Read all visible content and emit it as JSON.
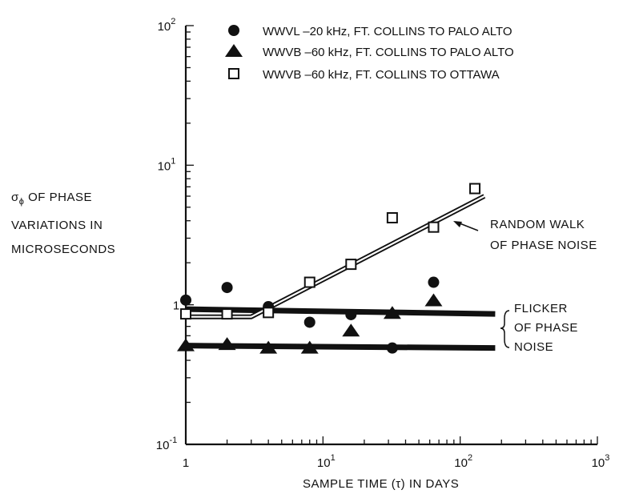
{
  "chart_data": {
    "type": "scatter",
    "title": "",
    "xlabel": "SAMPLE TIME (τ) IN DAYS",
    "ylabel_lines": [
      "σ",
      "ϕ",
      " OF PHASE",
      "VARIATIONS IN",
      "MICROSECONDS"
    ],
    "x_scale": "log",
    "y_scale": "log",
    "xlim": [
      1,
      1000
    ],
    "ylim": [
      0.1,
      100
    ],
    "x_ticks": [
      {
        "base": "1",
        "exp": ""
      },
      {
        "base": "10",
        "exp": "1"
      },
      {
        "base": "10",
        "exp": "2"
      },
      {
        "base": "10",
        "exp": "3"
      }
    ],
    "y_ticks": [
      {
        "value": 0.1,
        "base": "10",
        "exp": "-1"
      },
      {
        "value": 1,
        "base": "1",
        "exp": ""
      },
      {
        "value": 10,
        "base": "10",
        "exp": "1"
      },
      {
        "value": 100,
        "base": "10",
        "exp": "2"
      }
    ],
    "grid": false,
    "legend_position": "top",
    "series": [
      {
        "name": "WWVL –20 kHz, FT. COLLINS TO PALO ALTO",
        "marker": "filled-circle",
        "x": [
          1,
          2,
          4,
          8,
          16,
          32,
          64
        ],
        "y": [
          1.08,
          1.33,
          0.97,
          0.75,
          0.85,
          0.49,
          1.45
        ]
      },
      {
        "name": "WWVB –60 kHz, FT. COLLINS TO PALO ALTO",
        "marker": "filled-triangle",
        "x": [
          1,
          2,
          4,
          8,
          16,
          32,
          64
        ],
        "y": [
          0.51,
          0.52,
          0.49,
          0.49,
          0.65,
          0.87,
          1.07
        ]
      },
      {
        "name": "WWVB –60 kHz, FT. COLLINS TO OTTAWA",
        "marker": "open-square",
        "x": [
          1,
          2,
          4,
          8,
          16,
          32,
          64,
          128
        ],
        "y": [
          0.86,
          0.86,
          0.88,
          1.45,
          1.95,
          4.2,
          3.6,
          6.8
        ]
      }
    ],
    "lines": [
      {
        "kind": "flicker-upper",
        "x": [
          1,
          180
        ],
        "y": [
          0.93,
          0.86
        ]
      },
      {
        "kind": "flicker-lower",
        "x": [
          1,
          180
        ],
        "y": [
          0.51,
          0.49
        ]
      },
      {
        "kind": "random-walk",
        "x": [
          1,
          3,
          150
        ],
        "y": [
          0.82,
          0.82,
          6.0
        ]
      }
    ],
    "annotations": [
      {
        "lines": [
          "RANDOM WALK",
          "OF PHASE NOISE"
        ]
      },
      {
        "lines": [
          "FLICKER",
          "OF PHASE",
          "NOISE"
        ]
      }
    ]
  }
}
